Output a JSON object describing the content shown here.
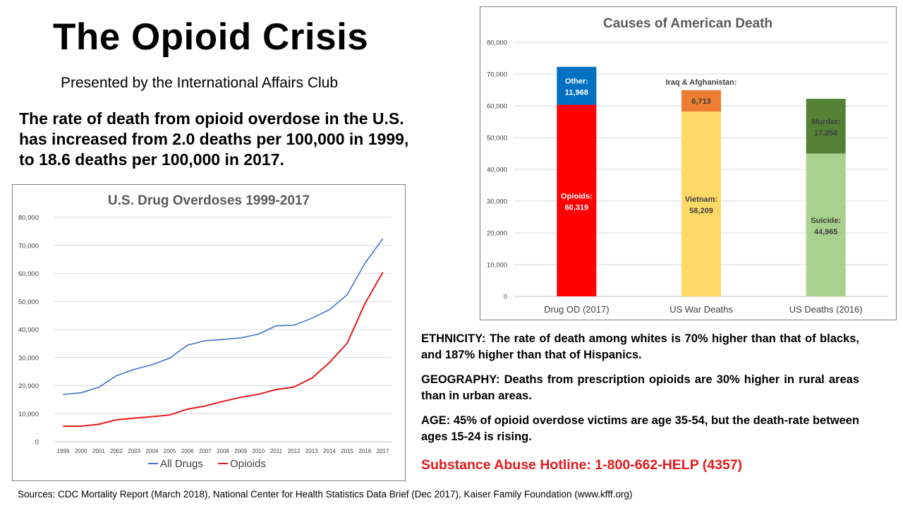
{
  "title": "The Opioid Crisis",
  "subtitle": "Presented by the International Affairs Club",
  "lead": "The rate of death from opioid overdose in the U.S. has increased from 2.0 deaths per 100,000 in 1999, to 18.6 deaths per 100,000 in 2017.",
  "facts": [
    "ETHNICITY:  The rate of death among whites is 70% higher than that of blacks, and 187% higher than that of Hispanics.",
    "GEOGRAPHY:  Deaths from prescription opioids are 30% higher in rural areas than in urban areas.",
    "AGE:  45% of opioid overdose victims are age 35-54, but the death-rate between ages 15-24 is rising."
  ],
  "hotline": "Substance Abuse Hotline:  1-800-662-HELP (4357)",
  "sources": "Sources:  CDC Mortality Report (March 2018),  National Center for Health Statistics Data Brief (Dec 2017), Kaiser Family Foundation (www.kfff.org)",
  "chart_data": [
    {
      "type": "line",
      "title": "U.S. Drug Overdoses 1999-2017",
      "x": [
        "1999",
        "2000",
        "2001",
        "2002",
        "2003",
        "2004",
        "2005",
        "2006",
        "2007",
        "2008",
        "2009",
        "2010",
        "2011",
        "2012",
        "2013",
        "2014",
        "2015",
        "2016",
        "2017"
      ],
      "ylim": [
        0,
        80000
      ],
      "yticks": [
        "0",
        "10,000",
        "20,000",
        "30,000",
        "40,000",
        "50,000",
        "60,000",
        "70,000",
        "80,000"
      ],
      "grid": true,
      "legend": "bottom",
      "series": [
        {
          "name": "All Drugs",
          "color": "#4472c4",
          "values": [
            16849,
            17415,
            19394,
            23518,
            25785,
            27424,
            29813,
            34425,
            36010,
            36450,
            37004,
            38329,
            41340,
            41502,
            43982,
            47055,
            52404,
            63632,
            72287
          ]
        },
        {
          "name": "Opioids",
          "color": "#e31a1c",
          "values": [
            5500,
            5500,
            6200,
            7800,
            8400,
            8900,
            9500,
            11600,
            12700,
            14400,
            15800,
            16900,
            18600,
            19500,
            22600,
            28200,
            35100,
            49200,
            60319
          ]
        }
      ]
    },
    {
      "type": "bar",
      "stacked": true,
      "title": "Causes of American Death",
      "categories": [
        "Drug OD (2017)",
        "US War Deaths",
        "US Deaths (2016)"
      ],
      "ylim": [
        0,
        80000
      ],
      "yticks": [
        "0",
        "10,000",
        "20,000",
        "30,000",
        "40,000",
        "50,000",
        "60,000",
        "70,000",
        "80,000"
      ],
      "grid": true,
      "series": [
        {
          "name": "Opioids:",
          "value_label": "60,319",
          "value": 60319,
          "category": 0,
          "color": "#ff0000",
          "text_color": "#ffffff"
        },
        {
          "name": "Other:",
          "value_label": "11,968",
          "value": 11968,
          "category": 0,
          "color": "#0070c0",
          "text_color": "#ffffff"
        },
        {
          "name": "Vietnam:",
          "value_label": "58,209",
          "value": 58209,
          "category": 1,
          "color": "#ffd966",
          "text_color": "#404040"
        },
        {
          "name": "Iraq & Afghanistan:",
          "value_label": "6,713",
          "value": 6713,
          "category": 1,
          "color": "#ed7d31",
          "text_color": "#404040"
        },
        {
          "name": "Suicide:",
          "value_label": "44,965",
          "value": 44965,
          "category": 2,
          "color": "#a9d18e",
          "text_color": "#404040"
        },
        {
          "name": "Murder:",
          "value_label": "17,250",
          "value": 17250,
          "category": 2,
          "color": "#548235",
          "text_color": "#404040"
        }
      ]
    }
  ]
}
